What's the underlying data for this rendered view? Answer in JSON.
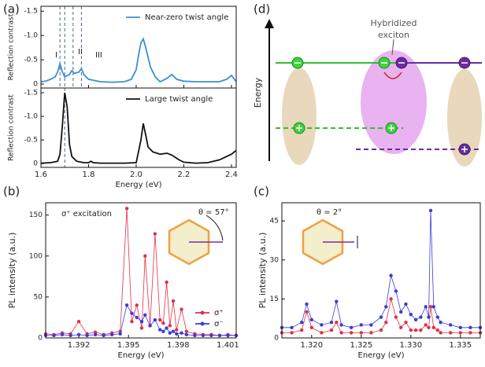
{
  "panels": [
    "(a)",
    "(b)",
    "(c)",
    "(d)"
  ],
  "diagram": {
    "y_label": "Energy",
    "label_lines": [
      "Hybridized",
      "exciton"
    ]
  },
  "chart_data": [
    {
      "type": "line",
      "ylabel": "Reflection contrast",
      "legend": "upper right",
      "show_xticklabels": false,
      "xlim": [
        1.6,
        2.42
      ],
      "xticks": [
        1.6,
        1.8,
        2,
        2.2,
        2.4
      ],
      "ylim": [
        0.08,
        -1.6
      ],
      "yticks": [
        0,
        -0.5,
        {
          "value": -1,
          "label": "-1.0"
        },
        -1.5
      ],
      "vlines": [
        1.68,
        1.7,
        1.735,
        1.77
      ],
      "annotations": [
        "I",
        "II",
        "III"
      ],
      "x": [
        1.6,
        1.62,
        1.64,
        1.66,
        1.67,
        1.68,
        1.69,
        1.7,
        1.72,
        1.73,
        1.74,
        1.76,
        1.77,
        1.78,
        1.8,
        1.85,
        1.9,
        1.95,
        1.98,
        2.0,
        2.01,
        2.02,
        2.03,
        2.04,
        2.06,
        2.08,
        2.1,
        2.13,
        2.15,
        2.17,
        2.2,
        2.25,
        2.3,
        2.35,
        2.38,
        2.4,
        2.42
      ],
      "series": [
        {
          "name": "Near-zero twist angle",
          "color": "#3a8fd6",
          "values": [
            -0.05,
            -0.06,
            -0.1,
            -0.15,
            -0.25,
            -0.42,
            -0.25,
            -0.15,
            -0.2,
            -0.28,
            -0.22,
            -0.25,
            -0.32,
            -0.2,
            -0.1,
            -0.05,
            -0.04,
            -0.05,
            -0.1,
            -0.3,
            -0.6,
            -0.85,
            -0.93,
            -0.75,
            -0.35,
            -0.15,
            -0.05,
            -0.12,
            -0.2,
            -0.1,
            -0.06,
            -0.05,
            -0.05,
            -0.05,
            -0.1,
            -0.18,
            -0.05
          ]
        }
      ]
    },
    {
      "type": "line",
      "ylabel": "Reflection contrast",
      "xlabel": "Energy (eV)",
      "legend": "upper right",
      "xlim": [
        1.6,
        2.42
      ],
      "xticks": [
        1.6,
        1.8,
        {
          "value": 2,
          "label": "2.0"
        },
        2.2,
        2.4
      ],
      "ylim": [
        0.08,
        -1.6
      ],
      "yticks": [
        0,
        -0.5,
        {
          "value": -1,
          "label": "-1.0"
        },
        -1.5
      ],
      "vlines": [
        1.7
      ],
      "x": [
        1.6,
        1.64,
        1.67,
        1.68,
        1.69,
        1.7,
        1.71,
        1.72,
        1.73,
        1.75,
        1.78,
        1.8,
        1.81,
        1.82,
        1.85,
        1.9,
        1.95,
        2.0,
        2.02,
        2.03,
        2.04,
        2.05,
        2.07,
        2.1,
        2.13,
        2.15,
        2.18,
        2.2,
        2.25,
        2.3,
        2.35,
        2.4,
        2.42
      ],
      "series": [
        {
          "name": "Large twist angle",
          "color": "#111111",
          "values": [
            -0.01,
            -0.02,
            -0.05,
            -0.2,
            -0.8,
            -1.5,
            -1.2,
            -0.4,
            -0.15,
            -0.05,
            -0.02,
            -0.02,
            -0.05,
            -0.02,
            -0.01,
            -0.01,
            -0.01,
            -0.02,
            -0.5,
            -0.85,
            -0.6,
            -0.35,
            -0.25,
            -0.2,
            -0.22,
            -0.18,
            -0.08,
            -0.03,
            -0.01,
            -0.02,
            -0.08,
            -0.2,
            -0.28
          ]
        }
      ]
    },
    {
      "type": "line",
      "markers": true,
      "ylabel": "PL intensity (a.u.)",
      "xlabel": "Energy (eV)",
      "legend": "lower right",
      "annotations": [
        "σ⁺ excitation",
        "θ = 57°"
      ],
      "xlim": [
        1.39,
        1.4015
      ],
      "xticks": [
        1.392,
        1.395,
        1.398,
        1.401
      ],
      "ylim": [
        0,
        165
      ],
      "yticks": [
        0,
        50,
        100,
        150
      ],
      "x": [
        1.39,
        1.3905,
        1.391,
        1.3915,
        1.392,
        1.3925,
        1.393,
        1.3935,
        1.394,
        1.3945,
        1.3949,
        1.3952,
        1.3955,
        1.3958,
        1.396,
        1.3963,
        1.3966,
        1.3969,
        1.3971,
        1.3973,
        1.3975,
        1.3977,
        1.3979,
        1.3982,
        1.3985,
        1.399,
        1.3995,
        1.4,
        1.4005,
        1.401,
        1.4015
      ],
      "series": [
        {
          "name": "σ⁺",
          "color": "#e0304a",
          "values": [
            5,
            4,
            6,
            5,
            20,
            5,
            7,
            4,
            6,
            8,
            158,
            20,
            40,
            12,
            100,
            15,
            127,
            22,
            18,
            68,
            15,
            45,
            10,
            35,
            8,
            5,
            4,
            4,
            3,
            4,
            3
          ]
        },
        {
          "name": "σ⁻",
          "color": "#3b3bd6",
          "values": [
            3,
            3,
            4,
            3,
            4,
            3,
            4,
            3,
            4,
            5,
            40,
            30,
            25,
            20,
            28,
            15,
            22,
            10,
            8,
            12,
            6,
            8,
            5,
            6,
            4,
            3,
            3,
            3,
            3,
            3,
            3
          ]
        }
      ]
    },
    {
      "type": "line",
      "markers": true,
      "ylabel": "PL intensity (a.u.)",
      "xlabel": "Energy (eV)",
      "annotations": [
        "θ = 2°"
      ],
      "xlim": [
        1.317,
        1.337
      ],
      "xticks": [
        {
          "value": 1.32,
          "label": "1.320"
        },
        1.325,
        {
          "value": 1.33,
          "label": "1.330"
        },
        1.335
      ],
      "ylim": [
        0,
        52
      ],
      "yticks": [
        0,
        15,
        30,
        45
      ],
      "x": [
        1.317,
        1.318,
        1.319,
        1.3195,
        1.32,
        1.321,
        1.322,
        1.3225,
        1.323,
        1.324,
        1.325,
        1.326,
        1.327,
        1.3275,
        1.328,
        1.3285,
        1.329,
        1.3295,
        1.33,
        1.3305,
        1.331,
        1.3315,
        1.3318,
        1.332,
        1.3323,
        1.3327,
        1.333,
        1.334,
        1.335,
        1.336,
        1.337
      ],
      "series": [
        {
          "color": "#e0304a",
          "values": [
            2,
            2,
            3,
            10,
            4,
            2,
            3,
            6,
            2,
            2,
            2,
            2,
            3,
            6,
            15,
            8,
            4,
            6,
            3,
            3,
            3,
            5,
            4,
            12,
            4,
            3,
            2,
            2,
            2,
            2,
            2
          ]
        },
        {
          "color": "#3b3bd6",
          "values": [
            4,
            4,
            6,
            13,
            7,
            5,
            6,
            14,
            5,
            4,
            5,
            5,
            8,
            12,
            24,
            18,
            10,
            13,
            9,
            7,
            8,
            12,
            8,
            49,
            12,
            8,
            6,
            5,
            4,
            4,
            4
          ]
        }
      ]
    }
  ]
}
